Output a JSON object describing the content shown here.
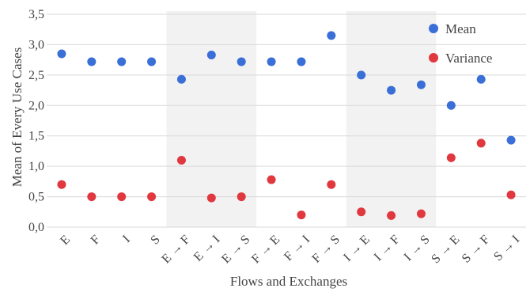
{
  "chart_data": {
    "type": "scatter",
    "title": "",
    "xlabel": "Flows and Exchanges",
    "ylabel": "Mean of Every Use Cases",
    "ylim": [
      0,
      3.5
    ],
    "y_ticks": [
      "0,0",
      "0,5",
      "1,0",
      "1,5",
      "2,0",
      "2,5",
      "3,0",
      "3,5"
    ],
    "grid": "horizontal",
    "legend_position": "top-right",
    "categories": [
      "E",
      "F",
      "I",
      "S",
      "E → F",
      "E → I",
      "E → S",
      "F → E",
      "F → I",
      "F → S",
      "I → E",
      "I → F",
      "I → S",
      "S → E",
      "S → F",
      "S → I"
    ],
    "shaded_groups": [
      {
        "from": "E → F",
        "to": "E → S"
      },
      {
        "from": "I → E",
        "to": "I → S"
      }
    ],
    "series": [
      {
        "name": "Mean",
        "color": "#3a6fd8",
        "values": [
          2.85,
          2.72,
          2.72,
          2.72,
          2.43,
          2.83,
          2.72,
          2.72,
          2.72,
          3.15,
          2.5,
          2.25,
          2.34,
          2.0,
          2.43,
          1.43
        ]
      },
      {
        "name": "Variance",
        "color": "#e0383e",
        "values": [
          0.7,
          0.5,
          0.5,
          0.5,
          1.1,
          0.48,
          0.5,
          0.78,
          0.2,
          0.7,
          0.25,
          0.19,
          0.22,
          1.14,
          1.38,
          0.53
        ]
      }
    ]
  }
}
